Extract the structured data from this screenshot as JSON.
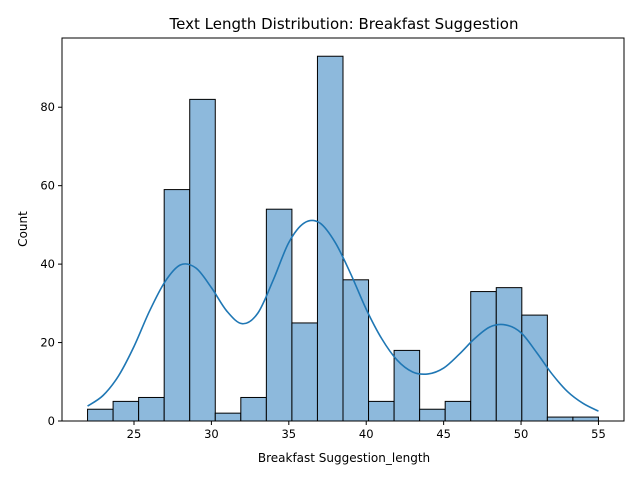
{
  "chart_data": {
    "type": "bar",
    "subtype": "histogram-with-kde",
    "title": "Text Length Distribution: Breakfast Suggestion",
    "xlabel": "Breakfast Suggestion_length",
    "ylabel": "Count",
    "xlim": [
      20.35,
      56.65
    ],
    "ylim": [
      0,
      97.65
    ],
    "xticks": [
      25,
      30,
      35,
      40,
      45,
      50,
      55
    ],
    "yticks": [
      0,
      20,
      40,
      60,
      80
    ],
    "bin_edges": [
      22.0,
      23.65,
      25.3,
      26.95,
      28.6,
      30.25,
      31.9,
      33.55,
      35.2,
      36.85,
      38.5,
      40.15,
      41.8,
      43.45,
      45.1,
      46.75,
      48.4,
      50.05,
      51.7,
      53.35,
      55.0
    ],
    "counts": [
      3,
      5,
      6,
      59,
      82,
      2,
      6,
      54,
      25,
      93,
      36,
      5,
      18,
      3,
      5,
      33,
      34,
      27,
      1,
      1
    ],
    "kde": {
      "x": [
        22,
        23,
        24,
        25,
        26,
        27,
        28,
        29,
        30,
        31,
        32,
        33,
        34,
        35,
        36,
        37,
        38,
        39,
        40,
        41,
        42,
        43,
        44,
        45,
        46,
        47,
        48,
        49,
        50,
        51,
        52,
        53,
        54,
        55
      ],
      "y": [
        3.8,
        6.5,
        11.5,
        19.0,
        28.0,
        35.5,
        39.8,
        39.0,
        34.0,
        28.0,
        24.8,
        27.5,
        36.0,
        45.5,
        50.5,
        50.5,
        45.5,
        37.5,
        28.5,
        21.0,
        15.5,
        12.5,
        12.0,
        13.5,
        17.0,
        21.0,
        24.0,
        24.5,
        22.5,
        17.5,
        12.0,
        7.5,
        4.5,
        2.5
      ]
    },
    "colors": {
      "bar_fill": "#8db9dc",
      "bar_edge": "#000000",
      "kde_line": "#1f77b4"
    },
    "grid": false,
    "legend": "none"
  }
}
